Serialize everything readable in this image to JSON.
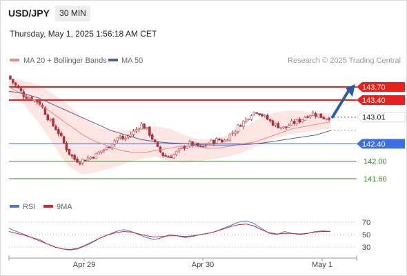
{
  "header": {
    "symbol": "USD/JPY",
    "timeframe": "30 MIN",
    "datetime": "Thursday, May 1, 2025 1:56:18 AM CET"
  },
  "legend": {
    "bb_label": "MA 20 + Bollinger Bands",
    "ma50_label": "MA 50",
    "source": "Research © 2025 Trading Central"
  },
  "rsi_legend": {
    "rsi_label": "RSI",
    "ma_label": "9MA"
  },
  "colors": {
    "resistance": "#e8211e",
    "support": "#3c6ee4",
    "target": "#2f8a1f",
    "candle": "#c8333b",
    "bb_fill": "#fbe0de",
    "ma20": "#f08686",
    "ma50": "#4d5f99",
    "arrow": "#2a5ba8",
    "rsi": "#4a78d2",
    "rsi_ma": "#d8232a"
  },
  "chart_data": [
    {
      "type": "candlestick",
      "instrument": "USD/JPY",
      "interval": "30 MIN",
      "ylim": [
        141.3,
        144.0
      ],
      "x_ticks": [
        "Apr 29",
        "Apr 30",
        "May 1"
      ],
      "last_price": 143.01,
      "price_path": [
        143.95,
        143.8,
        143.65,
        143.5,
        143.45,
        143.4,
        143.3,
        143.05,
        142.85,
        142.7,
        142.45,
        142.2,
        142.05,
        142.0,
        142.05,
        142.1,
        142.15,
        142.25,
        142.3,
        142.45,
        142.55,
        142.5,
        142.6,
        142.7,
        142.85,
        142.75,
        142.55,
        142.3,
        142.15,
        142.1,
        142.15,
        142.25,
        142.35,
        142.4,
        142.35,
        142.3,
        142.4,
        142.45,
        142.5,
        142.45,
        142.6,
        142.7,
        142.85,
        142.95,
        143.1,
        143.15,
        143.05,
        142.95,
        142.85,
        142.8,
        142.75,
        142.85,
        142.9,
        142.95,
        143.05,
        143.1,
        143.05,
        143.0,
        143.01
      ],
      "levels": [
        {
          "value": 143.7,
          "label": "143.70",
          "kind": "resistance"
        },
        {
          "value": 143.4,
          "label": "143.40",
          "kind": "resistance"
        },
        {
          "value": 142.4,
          "label": "142.40",
          "kind": "support"
        },
        {
          "value": 142.0,
          "label": "142.00",
          "kind": "target"
        },
        {
          "value": 141.6,
          "label": "141.60",
          "kind": "target"
        }
      ],
      "ma20": [
        143.7,
        143.55,
        143.4,
        143.2,
        143.0,
        142.8,
        142.6,
        142.45,
        142.35,
        142.25,
        142.2,
        142.2,
        142.25,
        142.3,
        142.35,
        142.35,
        142.3,
        142.3,
        142.35,
        142.4,
        142.45,
        142.55,
        142.65,
        142.75,
        142.8,
        142.85,
        142.9
      ],
      "ma50": [
        143.6,
        143.55,
        143.45,
        143.3,
        143.15,
        143.0,
        142.85,
        142.7,
        142.6,
        142.5,
        142.45,
        142.42,
        142.4,
        142.38,
        142.37,
        142.37,
        142.38,
        142.4,
        142.45,
        142.5,
        142.55,
        142.6,
        142.7
      ],
      "bb_upper": [
        143.9,
        143.85,
        143.75,
        143.55,
        143.3,
        143.0,
        142.8,
        142.7,
        142.7,
        142.75,
        142.8,
        142.75,
        142.6,
        142.5,
        142.5,
        142.6,
        142.75,
        142.95,
        143.1,
        143.15,
        143.15,
        143.1,
        143.1
      ],
      "bb_lower": [
        143.5,
        143.3,
        142.9,
        142.4,
        141.9,
        141.7,
        141.75,
        141.85,
        141.95,
        142.05,
        142.1,
        142.0,
        141.95,
        142.0,
        142.05,
        142.1,
        142.2,
        142.35,
        142.5,
        142.6,
        142.65,
        142.7,
        142.75
      ],
      "arrow": {
        "from": 143.01,
        "to": 143.7
      }
    },
    {
      "type": "line",
      "name": "RSI",
      "ylim": [
        20,
        80
      ],
      "levels": [
        70,
        50,
        30
      ],
      "rsi": [
        60,
        55,
        50,
        45,
        42,
        35,
        30,
        27,
        25,
        27,
        32,
        38,
        45,
        50,
        55,
        58,
        55,
        50,
        45,
        42,
        45,
        50,
        48,
        45,
        47,
        50,
        52,
        55,
        60,
        65,
        70,
        72,
        68,
        60,
        52,
        50,
        55,
        52,
        50,
        52,
        55,
        56,
        55
      ],
      "rsi_ma": [
        55,
        52,
        49,
        45,
        40,
        35,
        30,
        27,
        26,
        28,
        33,
        39,
        45,
        50,
        53,
        55,
        54,
        51,
        48,
        46,
        47,
        48,
        48,
        47,
        48,
        50,
        52,
        55,
        59,
        63,
        66,
        67,
        64,
        58,
        53,
        51,
        52,
        52,
        51,
        52,
        54,
        55,
        55
      ]
    }
  ]
}
